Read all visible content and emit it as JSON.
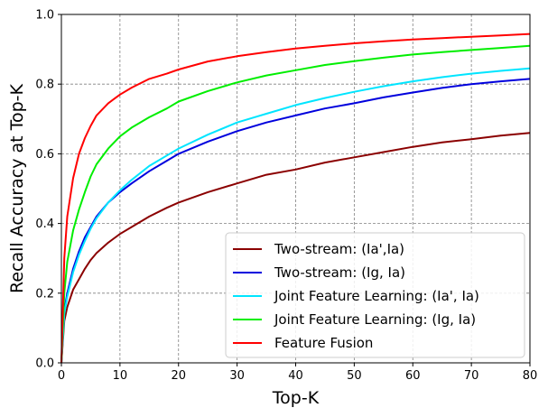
{
  "chart_data": {
    "type": "line",
    "title": "",
    "xlabel": "Top-K",
    "ylabel": "Recall Accuracy at Top-K",
    "xlim": [
      0,
      80
    ],
    "ylim": [
      0,
      1.0
    ],
    "xticks": [
      0,
      10,
      20,
      30,
      40,
      50,
      60,
      70,
      80
    ],
    "yticks": [
      0.0,
      0.2,
      0.4,
      0.6,
      0.8,
      1.0
    ],
    "xtick_labels": [
      "0",
      "10",
      "20",
      "30",
      "40",
      "50",
      "60",
      "70",
      "80"
    ],
    "ytick_labels": [
      "0.0",
      "0.2",
      "0.4",
      "0.6",
      "0.8",
      "1.0"
    ],
    "grid": true,
    "legend_position": "lower-right",
    "x": [
      0,
      0.5,
      1,
      2,
      3,
      4,
      5,
      6,
      8,
      10,
      12,
      15,
      18,
      20,
      25,
      30,
      35,
      40,
      45,
      50,
      55,
      60,
      65,
      70,
      75,
      80
    ],
    "series": [
      {
        "name": "Two-stream: (Ia',Ia)",
        "color": "#8b0000",
        "values": [
          0.0,
          0.12,
          0.16,
          0.21,
          0.24,
          0.27,
          0.295,
          0.315,
          0.345,
          0.37,
          0.39,
          0.42,
          0.445,
          0.46,
          0.49,
          0.515,
          0.54,
          0.555,
          0.575,
          0.59,
          0.605,
          0.62,
          0.633,
          0.642,
          0.652,
          0.66
        ]
      },
      {
        "name": "Two-stream: (Ig, Ia)",
        "color": "#0000dd",
        "values": [
          0.0,
          0.15,
          0.2,
          0.27,
          0.32,
          0.36,
          0.39,
          0.42,
          0.46,
          0.49,
          0.515,
          0.55,
          0.58,
          0.6,
          0.635,
          0.665,
          0.69,
          0.71,
          0.73,
          0.745,
          0.762,
          0.776,
          0.789,
          0.8,
          0.808,
          0.815
        ]
      },
      {
        "name": "Joint Feature Learning: (Ia', Ia)",
        "color": "#00e5ff",
        "values": [
          0.0,
          0.14,
          0.19,
          0.26,
          0.31,
          0.35,
          0.385,
          0.415,
          0.46,
          0.495,
          0.525,
          0.565,
          0.595,
          0.615,
          0.655,
          0.69,
          0.715,
          0.74,
          0.76,
          0.778,
          0.794,
          0.808,
          0.82,
          0.83,
          0.838,
          0.845
        ]
      },
      {
        "name": "Joint Feature Learning: (Ig, Ia)",
        "color": "#00ee00",
        "values": [
          0.0,
          0.2,
          0.29,
          0.38,
          0.44,
          0.49,
          0.535,
          0.57,
          0.615,
          0.65,
          0.675,
          0.705,
          0.73,
          0.75,
          0.78,
          0.805,
          0.825,
          0.84,
          0.855,
          0.866,
          0.876,
          0.885,
          0.892,
          0.898,
          0.904,
          0.91
        ]
      },
      {
        "name": "Feature Fusion",
        "color": "#ff0000",
        "values": [
          0.0,
          0.3,
          0.42,
          0.53,
          0.6,
          0.645,
          0.68,
          0.71,
          0.745,
          0.77,
          0.79,
          0.815,
          0.83,
          0.842,
          0.865,
          0.88,
          0.892,
          0.902,
          0.91,
          0.917,
          0.923,
          0.928,
          0.932,
          0.936,
          0.94,
          0.944
        ]
      }
    ]
  }
}
